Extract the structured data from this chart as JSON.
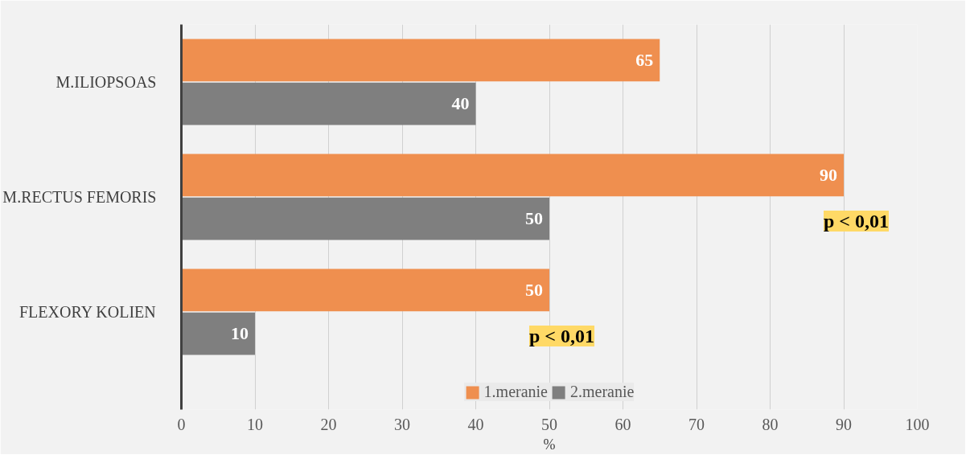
{
  "chart_data": {
    "type": "bar",
    "orientation": "horizontal",
    "xlabel": "%",
    "categories": [
      "M.ILIOPSOAS",
      "M.RECTUS FEMORIS",
      "FLEXORY KOLIEN"
    ],
    "series": [
      {
        "name": "1.meranie",
        "color": "#ef8f4f",
        "values": [
          65,
          90,
          50
        ]
      },
      {
        "name": "2.meranie",
        "color": "#7f7f7f",
        "values": [
          40,
          50,
          10
        ]
      }
    ],
    "xlim": [
      0,
      100
    ],
    "xticks": [
      0,
      10,
      20,
      30,
      40,
      50,
      60,
      70,
      80,
      90,
      100
    ],
    "grid": "x",
    "legend": "bottom",
    "data_labels": true,
    "annotations": [
      {
        "text": "p < 0,01",
        "x": 90,
        "y": "M.RECTUS FEMORIS"
      },
      {
        "text": "p < 0,01",
        "x": 50,
        "y": "FLEXORY KOLIEN"
      }
    ]
  }
}
